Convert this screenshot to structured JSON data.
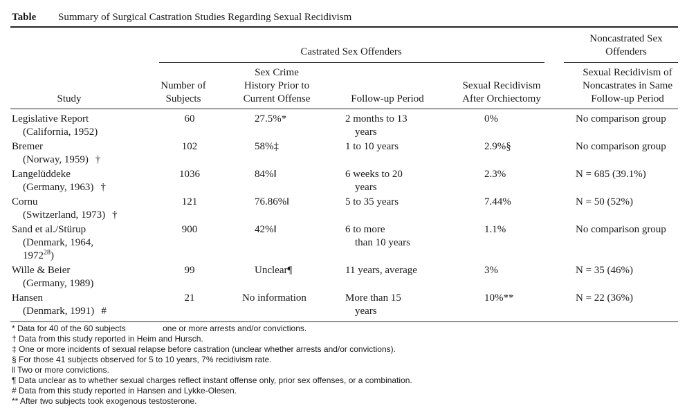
{
  "caption": {
    "label": "Table",
    "title": "Summary of Surgical Castration Studies Regarding Sexual Recidivism"
  },
  "headers": {
    "group_castrated": "Castrated Sex Offenders",
    "group_noncastrated": [
      "Noncastrated Sex",
      "Offenders"
    ],
    "study": "Study",
    "subjects": [
      "Number of",
      "Subjects"
    ],
    "history": [
      "Sex Crime",
      "History Prior to",
      "Current Offense"
    ],
    "followup": "Follow-up Period",
    "recidivism": [
      "Sexual Recidivism",
      "After Orchiectomy"
    ],
    "noncastrates": [
      "Sexual Recidivism of",
      "Noncastrates in Same",
      "Follow-up Period"
    ]
  },
  "rows": [
    {
      "study": "Legislative Report",
      "sub": "(California, 1952)",
      "mark": "",
      "subjects": "60",
      "history": "27.5%*",
      "followup": [
        "2 months to 13",
        "years"
      ],
      "recidivism": "0%",
      "noncastrates": "No comparison group"
    },
    {
      "study": "Bremer",
      "sub": "(Norway, 1959)",
      "mark": "†",
      "subjects": "102",
      "history": "58%‡",
      "followup": [
        "1 to 10 years"
      ],
      "recidivism": "2.9%§",
      "noncastrates": "No comparison group"
    },
    {
      "study": "Langelüddeke",
      "sub": "(Germany, 1963)",
      "mark": "†",
      "subjects": "1036",
      "history": "84%‖",
      "followup": [
        "6 weeks to 20",
        "years"
      ],
      "recidivism": "2.3%",
      "noncastrates": "N = 685 (39.1%)"
    },
    {
      "study": "Cornu",
      "sub": "(Switzerland, 1973)",
      "mark": "†",
      "subjects": "121",
      "history": "76.86%‖",
      "followup": [
        "5 to 35 years"
      ],
      "recidivism": "7.44%",
      "noncastrates": "N = 50 (52%)"
    },
    {
      "study": "Sand et al./Stürup",
      "sub": "(Denmark, 1964,",
      "sub2": "1972",
      "sup2": "28",
      "sub2end": ")",
      "mark": "",
      "subjects": "900",
      "history": "42%‖",
      "followup": [
        "6 to more",
        "than 10 years"
      ],
      "recidivism": "1.1%",
      "noncastrates": "No comparison group"
    },
    {
      "study": "Wille & Beier",
      "sub": "(Germany, 1989)",
      "mark": "",
      "subjects": "99",
      "history": "Unclear¶",
      "followup": [
        "11 years, average"
      ],
      "recidivism": "3%",
      "noncastrates": "N = 35 (46%)"
    },
    {
      "study": "Hansen",
      "sub": "(Denmark, 1991)",
      "mark": "#",
      "subjects": "21",
      "history": "No information",
      "followup": [
        "More than 15",
        "years"
      ],
      "recidivism": "10%**",
      "noncastrates": "N = 22 (36%)"
    }
  ],
  "footnotes": [
    "* Data for 40 of the 60 subjects                one or more arrests and/or convictions.",
    "† Data from this study reported in Heim and Hursch.",
    "‡ One or more incidents of sexual relapse before castration (unclear whether arrests and/or convictions).",
    "§ For those 41 subjects observed for 5 to 10 years, 7% recidivism rate.",
    "‖ Two or more convictions.",
    "¶ Data unclear as to whether sexual charges reflect instant offense only, prior sex offenses, or a combination.",
    "# Data from this study reported in Hansen and Lykke-Olesen.",
    "** After two subjects took exogenous testosterone."
  ]
}
